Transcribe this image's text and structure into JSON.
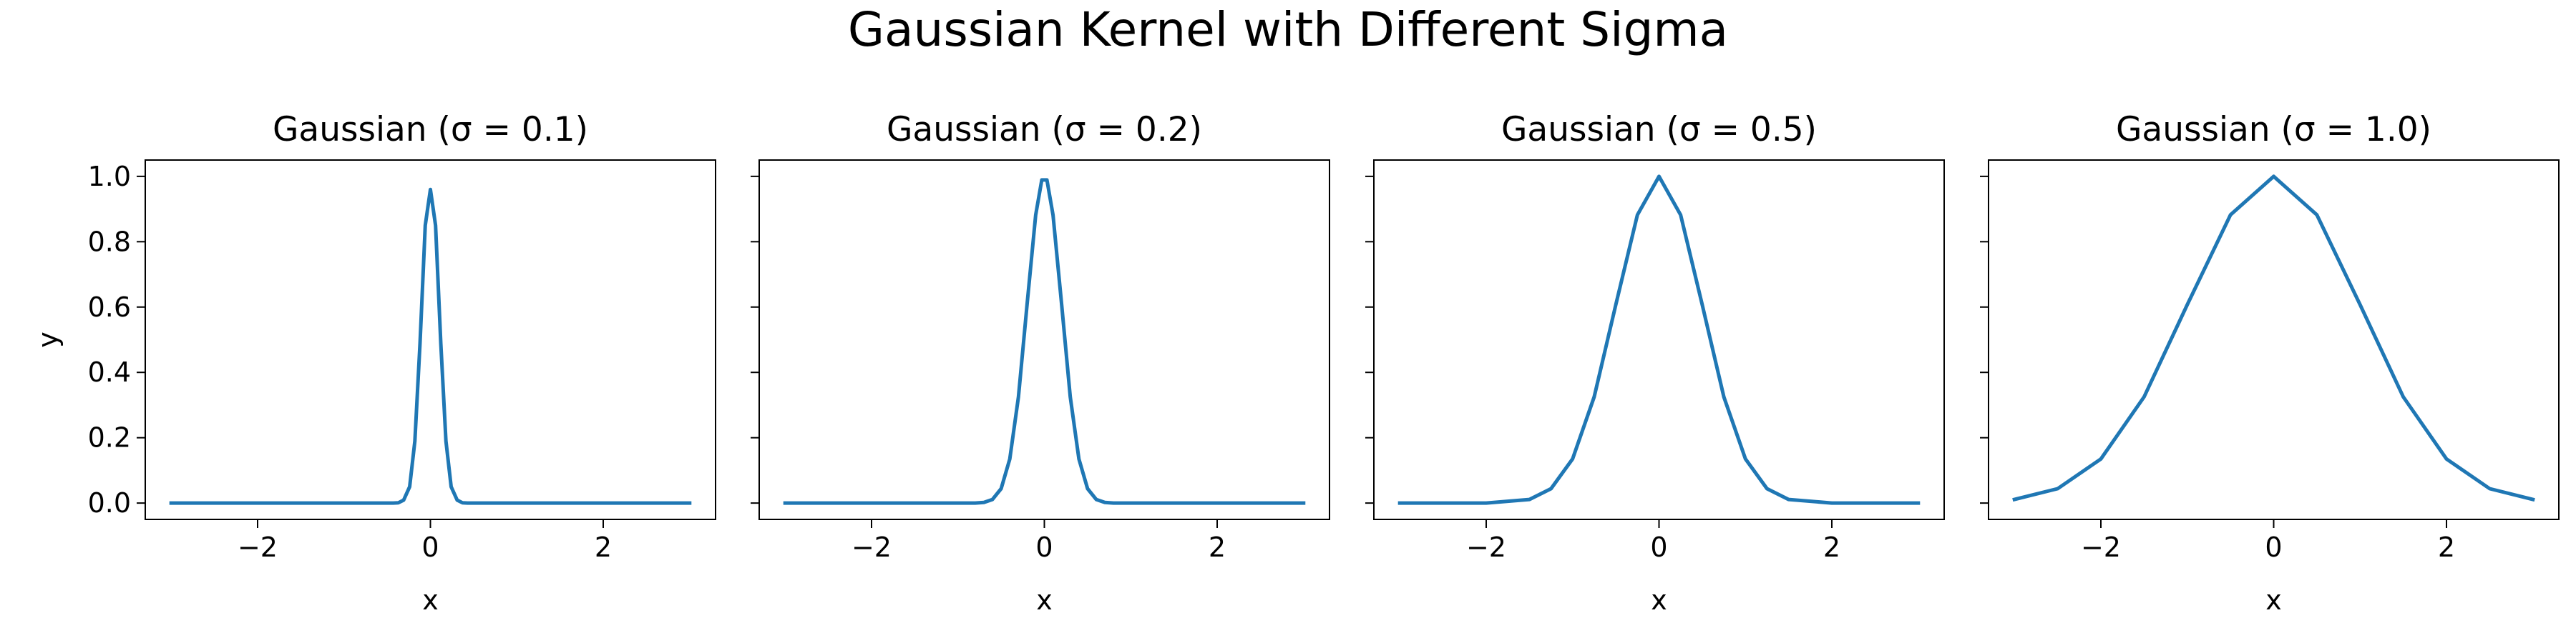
{
  "figure": {
    "title": "Gaussian Kernel with Different Sigma",
    "line_color": "#1f77b4"
  },
  "chart_data": [
    {
      "type": "line",
      "title": "Gaussian (σ = 0.1)",
      "sigma": 0.1,
      "xlabel": "x",
      "ylabel": "y",
      "xlim": [
        -3.3,
        3.3
      ],
      "ylim": [
        -0.05,
        1.05
      ],
      "xticks": [
        -2,
        0,
        2
      ],
      "xtick_labels": [
        "−2",
        "0",
        "2"
      ],
      "yticks": [
        0.0,
        0.2,
        0.4,
        0.6,
        0.8,
        1.0
      ],
      "ytick_labels": [
        "0.0",
        "0.2",
        "0.4",
        "0.6",
        "0.8",
        "1.0"
      ],
      "grid": false,
      "series": [
        {
          "x": [
            -3.0,
            -0.43,
            -0.37,
            -0.31,
            -0.24,
            -0.18,
            -0.12,
            -0.06,
            0.0,
            0.06,
            0.12,
            0.18,
            0.24,
            0.31,
            0.37,
            0.43,
            3.0
          ],
          "y": [
            0.0,
            0.0,
            0.001,
            0.009,
            0.05,
            0.19,
            0.49,
            0.85,
            0.96,
            0.85,
            0.49,
            0.19,
            0.05,
            0.009,
            0.001,
            0.0,
            0.0
          ]
        }
      ]
    },
    {
      "type": "line",
      "title": "Gaussian (σ = 0.2)",
      "sigma": 0.2,
      "xlabel": "x",
      "ylabel": "",
      "xlim": [
        -3.3,
        3.3
      ],
      "ylim": [
        -0.05,
        1.05
      ],
      "xticks": [
        -2,
        0,
        2
      ],
      "xtick_labels": [
        "−2",
        "0",
        "2"
      ],
      "yticks": [
        0.0,
        0.2,
        0.4,
        0.6,
        0.8,
        1.0
      ],
      "ytick_labels": [],
      "grid": false,
      "series": [
        {
          "x": [
            -3.0,
            -0.8,
            -0.7,
            -0.6,
            -0.5,
            -0.4,
            -0.3,
            -0.2,
            -0.1,
            -0.03,
            0.03,
            0.1,
            0.2,
            0.3,
            0.4,
            0.5,
            0.6,
            0.7,
            0.8,
            3.0
          ],
          "y": [
            0.0,
            0.0,
            0.002,
            0.011,
            0.044,
            0.135,
            0.325,
            0.607,
            0.882,
            0.989,
            0.989,
            0.882,
            0.607,
            0.325,
            0.135,
            0.044,
            0.011,
            0.002,
            0.0,
            0.0
          ]
        }
      ]
    },
    {
      "type": "line",
      "title": "Gaussian (σ = 0.5)",
      "sigma": 0.5,
      "xlabel": "x",
      "ylabel": "",
      "xlim": [
        -3.3,
        3.3
      ],
      "ylim": [
        -0.05,
        1.05
      ],
      "xticks": [
        -2,
        0,
        2
      ],
      "xtick_labels": [
        "−2",
        "0",
        "2"
      ],
      "yticks": [
        0.0,
        0.2,
        0.4,
        0.6,
        0.8,
        1.0
      ],
      "ytick_labels": [],
      "grid": false,
      "series": [
        {
          "x": [
            -3.0,
            -2.0,
            -1.5,
            -1.25,
            -1.0,
            -0.75,
            -0.5,
            -0.25,
            0.0,
            0.25,
            0.5,
            0.75,
            1.0,
            1.25,
            1.5,
            2.0,
            3.0
          ],
          "y": [
            0.0,
            0.0,
            0.011,
            0.044,
            0.135,
            0.325,
            0.607,
            0.882,
            1.0,
            0.882,
            0.607,
            0.325,
            0.135,
            0.044,
            0.011,
            0.0,
            0.0
          ]
        }
      ]
    },
    {
      "type": "line",
      "title": "Gaussian (σ = 1.0)",
      "sigma": 1.0,
      "xlabel": "x",
      "ylabel": "",
      "xlim": [
        -3.3,
        3.3
      ],
      "ylim": [
        -0.05,
        1.05
      ],
      "xticks": [
        -2,
        0,
        2
      ],
      "xtick_labels": [
        "−2",
        "0",
        "2"
      ],
      "yticks": [
        0.0,
        0.2,
        0.4,
        0.6,
        0.8,
        1.0
      ],
      "ytick_labels": [],
      "grid": false,
      "series": [
        {
          "x": [
            -3.0,
            -2.5,
            -2.0,
            -1.5,
            -1.0,
            -0.5,
            0.0,
            0.5,
            1.0,
            1.5,
            2.0,
            2.5,
            3.0
          ],
          "y": [
            0.011,
            0.044,
            0.135,
            0.325,
            0.607,
            0.882,
            1.0,
            0.882,
            0.607,
            0.325,
            0.135,
            0.044,
            0.011
          ]
        }
      ]
    }
  ]
}
